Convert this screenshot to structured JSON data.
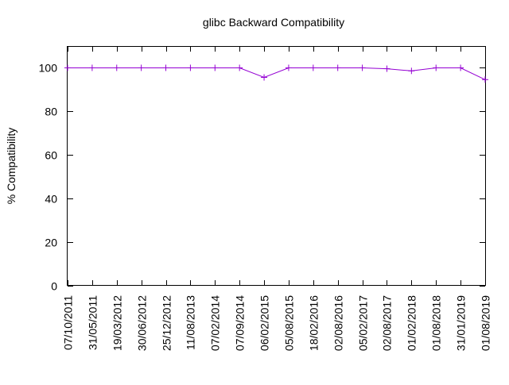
{
  "chart_data": {
    "type": "line",
    "title": "glibc Backward Compatibility",
    "xlabel": "",
    "ylabel": "% Compatibility",
    "ylim": [
      0,
      110
    ],
    "yticks": [
      0,
      20,
      40,
      60,
      80,
      100
    ],
    "grid": false,
    "legend": "none",
    "categories": [
      "07/10/2011",
      "31/05/2011",
      "19/03/2012",
      "30/06/2012",
      "25/12/2012",
      "11/08/2013",
      "07/02/2014",
      "07/09/2014",
      "06/02/2015",
      "05/08/2015",
      "18/02/2016",
      "02/08/2016",
      "05/02/2017",
      "02/08/2017",
      "01/02/2018",
      "01/08/2018",
      "31/01/2019",
      "01/08/2019"
    ],
    "series": [
      {
        "color": "#9400d3",
        "values": [
          100,
          100,
          100,
          100,
          100,
          100,
          100,
          100,
          95.6,
          100,
          100,
          100,
          100,
          99.6,
          98.6,
          100,
          100,
          94.6
        ]
      }
    ]
  }
}
